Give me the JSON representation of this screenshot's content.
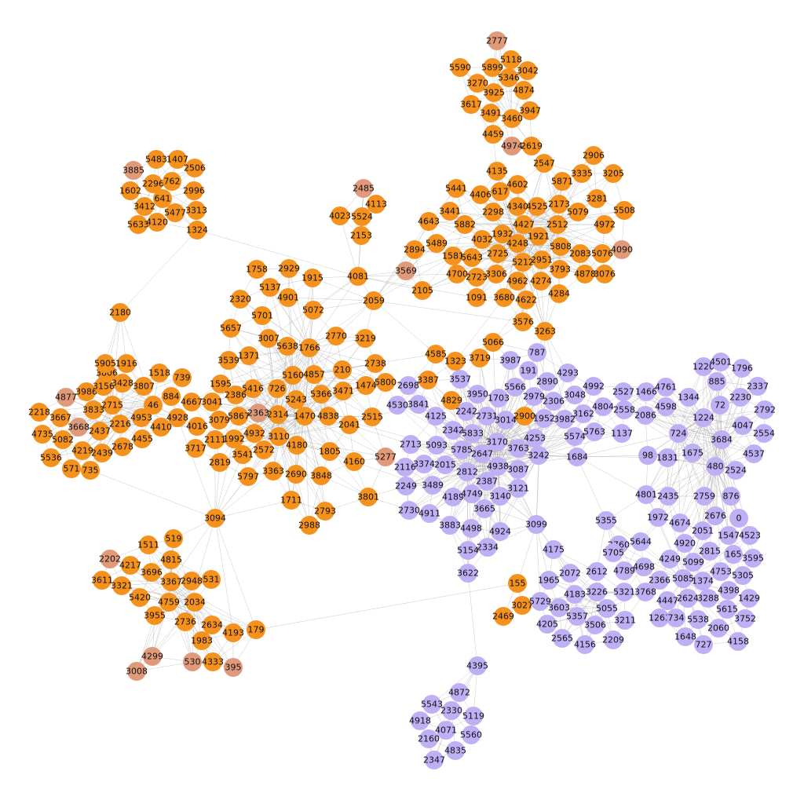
{
  "colors": {
    "orange": "#f5921e",
    "salmon": "#e09a7a",
    "purple": "#bfb0f5",
    "edge": "#9a9a9a",
    "label": "#111111"
  },
  "groups": {
    "top": [
      {
        "id": "2777",
        "c": "salmon"
      },
      {
        "id": "5590"
      },
      {
        "id": "5118"
      },
      {
        "id": "5899"
      },
      {
        "id": "3042"
      },
      {
        "id": "5346"
      },
      {
        "id": "3270"
      },
      {
        "id": "3925"
      },
      {
        "id": "4874"
      },
      {
        "id": "3617"
      },
      {
        "id": "3491"
      },
      {
        "id": "3947"
      },
      {
        "id": "3460"
      },
      {
        "id": "4459"
      },
      {
        "id": "4974",
        "c": "salmon"
      },
      {
        "id": "2619"
      }
    ],
    "topleft": [
      {
        "id": "3885",
        "c": "salmon"
      },
      {
        "id": "5483"
      },
      {
        "id": "1407"
      },
      {
        "id": "2506"
      },
      {
        "id": "2296"
      },
      {
        "id": "762"
      },
      {
        "id": "1602"
      },
      {
        "id": "641"
      },
      {
        "id": "2996"
      },
      {
        "id": "3412"
      },
      {
        "id": "5477"
      },
      {
        "id": "3313"
      },
      {
        "id": "5633"
      },
      {
        "id": "4120"
      },
      {
        "id": "1324"
      }
    ],
    "upperright": [
      {
        "id": "2906"
      },
      {
        "id": "2547"
      },
      {
        "id": "3335"
      },
      {
        "id": "3205"
      },
      {
        "id": "4135"
      },
      {
        "id": "5871"
      },
      {
        "id": "4602"
      },
      {
        "id": "617"
      },
      {
        "id": "4406"
      },
      {
        "id": "3281"
      },
      {
        "id": "5441"
      },
      {
        "id": "2298"
      },
      {
        "id": "4340"
      },
      {
        "id": "4525"
      },
      {
        "id": "2173"
      },
      {
        "id": "5079"
      },
      {
        "id": "5508"
      },
      {
        "id": "3441"
      },
      {
        "id": "4643"
      },
      {
        "id": "5882"
      },
      {
        "id": "4427"
      },
      {
        "id": "1932"
      },
      {
        "id": "2512"
      },
      {
        "id": "4972"
      },
      {
        "id": "4032"
      },
      {
        "id": "1921"
      },
      {
        "id": "5489"
      },
      {
        "id": "2894"
      },
      {
        "id": "4248"
      },
      {
        "id": "5808"
      },
      {
        "id": "4090",
        "c": "salmon"
      },
      {
        "id": "1581"
      },
      {
        "id": "5643"
      },
      {
        "id": "2725"
      },
      {
        "id": "2083"
      },
      {
        "id": "5076"
      },
      {
        "id": "5212"
      },
      {
        "id": "2951"
      },
      {
        "id": "3569",
        "c": "salmon"
      },
      {
        "id": "4700"
      },
      {
        "id": "2723"
      },
      {
        "id": "3306"
      },
      {
        "id": "3793"
      },
      {
        "id": "4878"
      },
      {
        "id": "3076"
      },
      {
        "id": "2105"
      },
      {
        "id": "4962"
      },
      {
        "id": "4274"
      },
      {
        "id": "1091"
      },
      {
        "id": "3680"
      },
      {
        "id": "4622"
      },
      {
        "id": "4284"
      },
      {
        "id": "3576"
      },
      {
        "id": "3263"
      }
    ],
    "center": [
      {
        "id": "2485",
        "c": "salmon"
      },
      {
        "id": "4023"
      },
      {
        "id": "5524"
      },
      {
        "id": "4113"
      },
      {
        "id": "2153"
      },
      {
        "id": "1758"
      },
      {
        "id": "2929"
      },
      {
        "id": "1915"
      },
      {
        "id": "4081"
      },
      {
        "id": "5137"
      },
      {
        "id": "4901"
      },
      {
        "id": "2320"
      },
      {
        "id": "2059"
      },
      {
        "id": "5701"
      },
      {
        "id": "5072"
      },
      {
        "id": "5657"
      },
      {
        "id": "3007"
      },
      {
        "id": "2770"
      },
      {
        "id": "3219"
      },
      {
        "id": "5638"
      },
      {
        "id": "1766"
      },
      {
        "id": "3539"
      },
      {
        "id": "1371"
      },
      {
        "id": "2738"
      },
      {
        "id": "210"
      },
      {
        "id": "5160"
      },
      {
        "id": "4857"
      },
      {
        "id": "1595"
      },
      {
        "id": "5416"
      },
      {
        "id": "726"
      },
      {
        "id": "5366"
      },
      {
        "id": "3471"
      },
      {
        "id": "1474"
      },
      {
        "id": "5800"
      },
      {
        "id": "2386"
      },
      {
        "id": "5243"
      },
      {
        "id": "3041"
      },
      {
        "id": "4667"
      },
      {
        "id": "5867"
      },
      {
        "id": "2363",
        "c": "salmon"
      },
      {
        "id": "2314"
      },
      {
        "id": "1470"
      },
      {
        "id": "4838"
      },
      {
        "id": "2515"
      },
      {
        "id": "3079"
      },
      {
        "id": "2041"
      },
      {
        "id": "2111"
      },
      {
        "id": "1992"
      },
      {
        "id": "4932"
      },
      {
        "id": "3110"
      },
      {
        "id": "3717"
      },
      {
        "id": "2572"
      },
      {
        "id": "4180"
      },
      {
        "id": "1805"
      },
      {
        "id": "2819"
      },
      {
        "id": "3541"
      },
      {
        "id": "4160"
      },
      {
        "id": "5277",
        "c": "salmon"
      },
      {
        "id": "5797"
      },
      {
        "id": "3363"
      },
      {
        "id": "2690"
      },
      {
        "id": "3848"
      },
      {
        "id": "1711"
      },
      {
        "id": "3801"
      },
      {
        "id": "2793"
      },
      {
        "id": "2988"
      },
      {
        "id": "3094"
      }
    ],
    "left": [
      {
        "id": "2180"
      },
      {
        "id": "3806"
      },
      {
        "id": "5905"
      },
      {
        "id": "1916"
      },
      {
        "id": "1518"
      },
      {
        "id": "739"
      },
      {
        "id": "3986"
      },
      {
        "id": "3156"
      },
      {
        "id": "3428"
      },
      {
        "id": "3807"
      },
      {
        "id": "4877",
        "c": "salmon"
      },
      {
        "id": "884"
      },
      {
        "id": "2715"
      },
      {
        "id": "46"
      },
      {
        "id": "3833"
      },
      {
        "id": "2218"
      },
      {
        "id": "3667"
      },
      {
        "id": "4953"
      },
      {
        "id": "4928"
      },
      {
        "id": "4016"
      },
      {
        "id": "4735"
      },
      {
        "id": "3668",
        "c": "salmon"
      },
      {
        "id": "2437"
      },
      {
        "id": "2216"
      },
      {
        "id": "4410"
      },
      {
        "id": "5082"
      },
      {
        "id": "4455"
      },
      {
        "id": "4219"
      },
      {
        "id": "2439"
      },
      {
        "id": "2678"
      },
      {
        "id": "5536"
      },
      {
        "id": "571"
      },
      {
        "id": "735"
      }
    ],
    "bottomleft": [
      {
        "id": "519"
      },
      {
        "id": "1511"
      },
      {
        "id": "4815"
      },
      {
        "id": "2202",
        "c": "salmon"
      },
      {
        "id": "4217"
      },
      {
        "id": "3696"
      },
      {
        "id": "3611"
      },
      {
        "id": "3321"
      },
      {
        "id": "3367"
      },
      {
        "id": "2948"
      },
      {
        "id": "531"
      },
      {
        "id": "5420"
      },
      {
        "id": "4759"
      },
      {
        "id": "2034"
      },
      {
        "id": "3955"
      },
      {
        "id": "2736"
      },
      {
        "id": "2634"
      },
      {
        "id": "179"
      },
      {
        "id": "4193"
      },
      {
        "id": "1983"
      },
      {
        "id": "4299",
        "c": "salmon"
      },
      {
        "id": "530",
        "c": "salmon"
      },
      {
        "id": "4333"
      },
      {
        "id": "395",
        "c": "salmon"
      },
      {
        "id": "3008",
        "c": "salmon"
      },
      {
        "id": "155"
      },
      {
        "id": "3027"
      },
      {
        "id": "2469"
      }
    ],
    "midpurple": [
      {
        "id": "4585"
      },
      {
        "id": "1323"
      },
      {
        "id": "3719"
      },
      {
        "id": "5066"
      },
      {
        "id": "787",
        "c": "purple"
      },
      {
        "id": "3987",
        "c": "purple"
      },
      {
        "id": "191",
        "c": "purple"
      },
      {
        "id": "4293",
        "c": "purple"
      },
      {
        "id": "2890",
        "c": "purple"
      },
      {
        "id": "3387"
      },
      {
        "id": "3537",
        "c": "purple"
      },
      {
        "id": "2698",
        "c": "purple"
      },
      {
        "id": "5566",
        "c": "purple"
      },
      {
        "id": "4992",
        "c": "purple"
      },
      {
        "id": "2979",
        "c": "purple"
      },
      {
        "id": "3048",
        "c": "purple"
      },
      {
        "id": "3950",
        "c": "purple"
      },
      {
        "id": "1703",
        "c": "purple"
      },
      {
        "id": "2306",
        "c": "purple"
      },
      {
        "id": "3841",
        "c": "purple"
      },
      {
        "id": "4829"
      },
      {
        "id": "4530",
        "c": "purple"
      },
      {
        "id": "4804",
        "c": "purple"
      },
      {
        "id": "3162",
        "c": "purple"
      },
      {
        "id": "2242",
        "c": "purple"
      },
      {
        "id": "4125",
        "c": "purple"
      },
      {
        "id": "2731",
        "c": "purple"
      },
      {
        "id": "3014",
        "c": "purple"
      },
      {
        "id": "2900"
      },
      {
        "id": "1952",
        "c": "purple"
      },
      {
        "id": "3982",
        "c": "purple"
      },
      {
        "id": "2342",
        "c": "purple"
      },
      {
        "id": "5833",
        "c": "purple"
      },
      {
        "id": "5574",
        "c": "purple"
      },
      {
        "id": "5763",
        "c": "purple"
      },
      {
        "id": "4253",
        "c": "purple"
      },
      {
        "id": "2713",
        "c": "purple"
      },
      {
        "id": "5093",
        "c": "purple"
      },
      {
        "id": "3170",
        "c": "purple"
      },
      {
        "id": "5785",
        "c": "purple"
      },
      {
        "id": "3763",
        "c": "purple"
      },
      {
        "id": "2647",
        "c": "purple"
      },
      {
        "id": "3242",
        "c": "purple"
      },
      {
        "id": "1684",
        "c": "purple"
      },
      {
        "id": "2116",
        "c": "purple"
      },
      {
        "id": "3374",
        "c": "purple"
      },
      {
        "id": "2015",
        "c": "purple"
      },
      {
        "id": "4938",
        "c": "purple"
      },
      {
        "id": "3087",
        "c": "purple"
      },
      {
        "id": "2812",
        "c": "purple"
      },
      {
        "id": "2249",
        "c": "purple"
      },
      {
        "id": "3489",
        "c": "purple"
      },
      {
        "id": "2387",
        "c": "purple"
      },
      {
        "id": "3121",
        "c": "purple"
      },
      {
        "id": "4189",
        "c": "purple"
      },
      {
        "id": "4749",
        "c": "purple"
      },
      {
        "id": "3140",
        "c": "purple"
      },
      {
        "id": "2730",
        "c": "purple"
      },
      {
        "id": "4911",
        "c": "purple"
      },
      {
        "id": "3665",
        "c": "purple"
      },
      {
        "id": "3883",
        "c": "purple"
      },
      {
        "id": "4498",
        "c": "purple"
      },
      {
        "id": "4924",
        "c": "purple"
      },
      {
        "id": "3099",
        "c": "purple"
      },
      {
        "id": "5154",
        "c": "purple"
      },
      {
        "id": "2334",
        "c": "purple"
      },
      {
        "id": "3622",
        "c": "purple"
      },
      {
        "id": "1137",
        "c": "purple"
      }
    ],
    "right": [
      {
        "id": "1220",
        "c": "purple"
      },
      {
        "id": "4501",
        "c": "purple"
      },
      {
        "id": "1796",
        "c": "purple"
      },
      {
        "id": "885",
        "c": "purple"
      },
      {
        "id": "2337",
        "c": "purple"
      },
      {
        "id": "4761",
        "c": "purple"
      },
      {
        "id": "2527",
        "c": "purple"
      },
      {
        "id": "1466",
        "c": "purple"
      },
      {
        "id": "1344",
        "c": "purple"
      },
      {
        "id": "2230",
        "c": "purple"
      },
      {
        "id": "4598",
        "c": "purple"
      },
      {
        "id": "72",
        "c": "purple"
      },
      {
        "id": "2558",
        "c": "purple"
      },
      {
        "id": "2086",
        "c": "purple"
      },
      {
        "id": "1224",
        "c": "purple"
      },
      {
        "id": "2792",
        "c": "purple"
      },
      {
        "id": "4047",
        "c": "purple"
      },
      {
        "id": "724",
        "c": "purple"
      },
      {
        "id": "3684",
        "c": "purple"
      },
      {
        "id": "2554",
        "c": "purple"
      },
      {
        "id": "98",
        "c": "purple"
      },
      {
        "id": "1831",
        "c": "purple"
      },
      {
        "id": "1675",
        "c": "purple"
      },
      {
        "id": "4537",
        "c": "purple"
      },
      {
        "id": "480",
        "c": "purple"
      },
      {
        "id": "2524",
        "c": "purple"
      },
      {
        "id": "4801",
        "c": "purple"
      },
      {
        "id": "2435",
        "c": "purple"
      },
      {
        "id": "2759",
        "c": "purple"
      },
      {
        "id": "876",
        "c": "purple"
      },
      {
        "id": "1972",
        "c": "purple"
      },
      {
        "id": "4674",
        "c": "purple"
      },
      {
        "id": "2676",
        "c": "purple"
      },
      {
        "id": "0",
        "c": "purple"
      },
      {
        "id": "2051",
        "c": "purple"
      },
      {
        "id": "1547",
        "c": "purple"
      },
      {
        "id": "4523",
        "c": "purple"
      },
      {
        "id": "5355",
        "c": "purple"
      },
      {
        "id": "2760",
        "c": "purple"
      },
      {
        "id": "5644",
        "c": "purple"
      },
      {
        "id": "4920",
        "c": "purple"
      },
      {
        "id": "2815",
        "c": "purple"
      },
      {
        "id": "165",
        "c": "purple"
      },
      {
        "id": "3595",
        "c": "purple"
      },
      {
        "id": "5705",
        "c": "purple"
      },
      {
        "id": "4249",
        "c": "purple"
      },
      {
        "id": "5099",
        "c": "purple"
      },
      {
        "id": "4753",
        "c": "purple"
      },
      {
        "id": "5305",
        "c": "purple"
      },
      {
        "id": "4698",
        "c": "purple"
      },
      {
        "id": "4789",
        "c": "purple"
      },
      {
        "id": "2366",
        "c": "purple"
      },
      {
        "id": "5085",
        "c": "purple"
      },
      {
        "id": "1374",
        "c": "purple"
      },
      {
        "id": "4398",
        "c": "purple"
      },
      {
        "id": "1429",
        "c": "purple"
      },
      {
        "id": "4447",
        "c": "purple"
      },
      {
        "id": "2624",
        "c": "purple"
      },
      {
        "id": "3288",
        "c": "purple"
      },
      {
        "id": "5615",
        "c": "purple"
      },
      {
        "id": "1263",
        "c": "purple"
      },
      {
        "id": "734",
        "c": "purple"
      },
      {
        "id": "5538",
        "c": "purple"
      },
      {
        "id": "3752",
        "c": "purple"
      },
      {
        "id": "2060",
        "c": "purple"
      },
      {
        "id": "1648",
        "c": "purple"
      },
      {
        "id": "727",
        "c": "purple"
      },
      {
        "id": "4158",
        "c": "purple"
      }
    ],
    "bottommid": [
      {
        "id": "4175",
        "c": "purple"
      },
      {
        "id": "2072",
        "c": "purple"
      },
      {
        "id": "2612",
        "c": "purple"
      },
      {
        "id": "1965",
        "c": "purple"
      },
      {
        "id": "4183",
        "c": "purple"
      },
      {
        "id": "3226",
        "c": "purple"
      },
      {
        "id": "5321",
        "c": "purple"
      },
      {
        "id": "3768",
        "c": "purple"
      },
      {
        "id": "5729",
        "c": "purple"
      },
      {
        "id": "3603",
        "c": "purple"
      },
      {
        "id": "5055",
        "c": "purple"
      },
      {
        "id": "5357",
        "c": "purple"
      },
      {
        "id": "3211",
        "c": "purple"
      },
      {
        "id": "4205",
        "c": "purple"
      },
      {
        "id": "3506",
        "c": "purple"
      },
      {
        "id": "2565",
        "c": "purple"
      },
      {
        "id": "4156",
        "c": "purple"
      },
      {
        "id": "2209",
        "c": "purple"
      }
    ],
    "bottom": [
      {
        "id": "4395",
        "c": "purple"
      },
      {
        "id": "4872",
        "c": "purple"
      },
      {
        "id": "5543",
        "c": "purple"
      },
      {
        "id": "2330",
        "c": "purple"
      },
      {
        "id": "5119",
        "c": "purple"
      },
      {
        "id": "4918",
        "c": "purple"
      },
      {
        "id": "4071",
        "c": "purple"
      },
      {
        "id": "5560",
        "c": "purple"
      },
      {
        "id": "2160",
        "c": "purple"
      },
      {
        "id": "4835",
        "c": "purple"
      },
      {
        "id": "2347",
        "c": "purple"
      }
    ]
  }
}
